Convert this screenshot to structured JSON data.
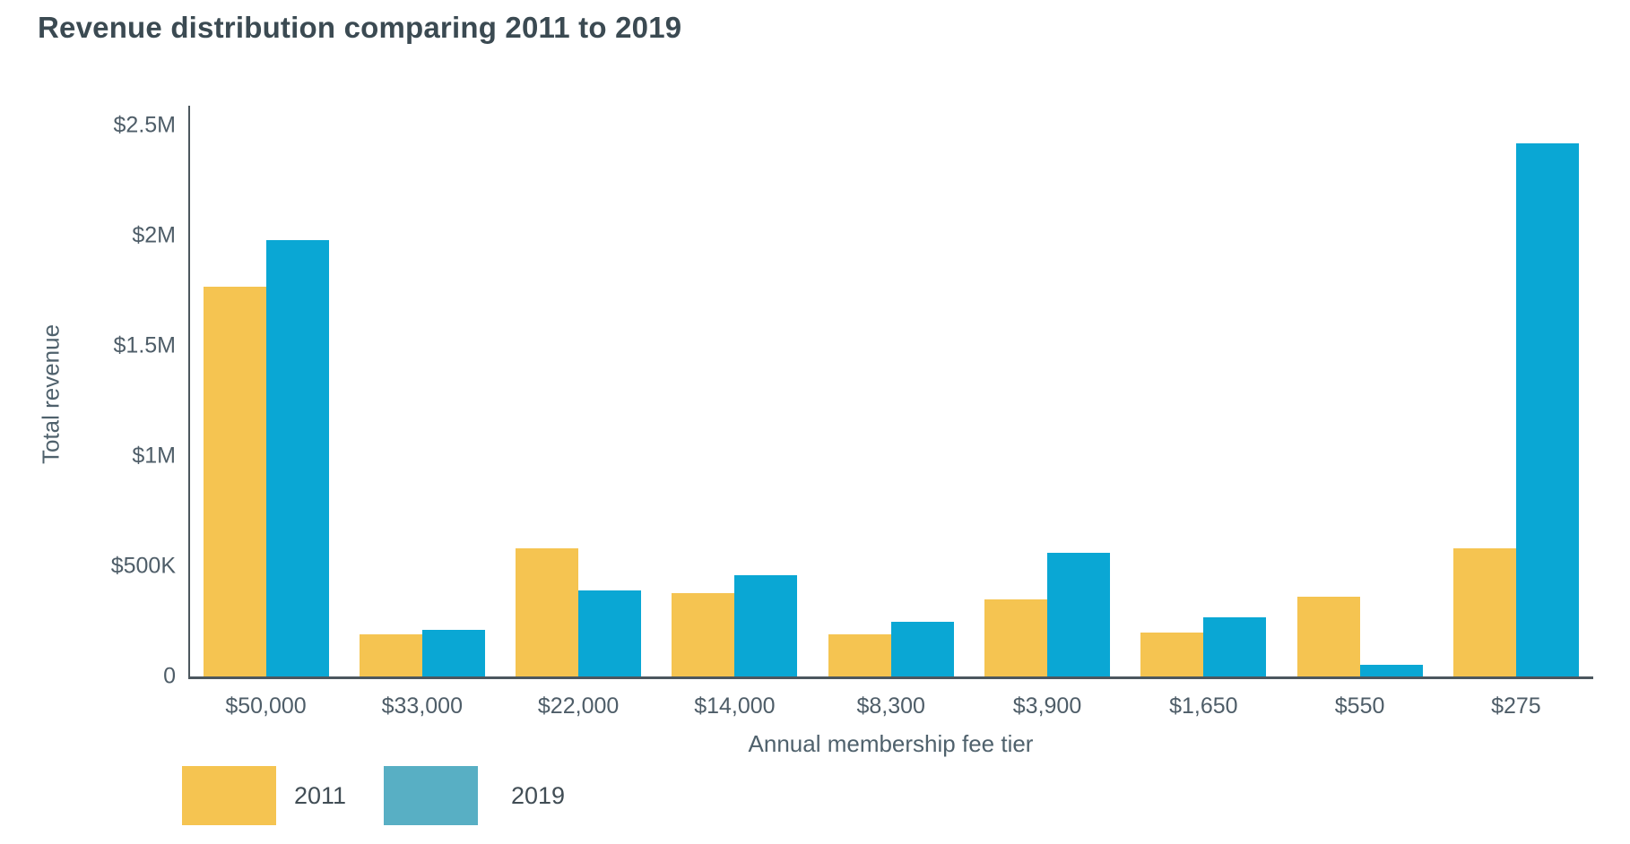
{
  "title": "Revenue distribution comparing 2011 to 2019",
  "chart_data": {
    "type": "bar",
    "title": "Revenue distribution comparing 2011 to 2019",
    "xlabel": "Annual membership fee tier",
    "ylabel": "Total revenue",
    "categories": [
      "$50,000",
      "$33,000",
      "$22,000",
      "$14,000",
      "$8,300",
      "$3,900",
      "$1,650",
      "$550",
      "$275"
    ],
    "series": [
      {
        "name": "2011",
        "color": "#f5c451",
        "legend_color": "#f5c451",
        "values": [
          1770000,
          190000,
          580000,
          380000,
          190000,
          350000,
          200000,
          360000,
          580000
        ]
      },
      {
        "name": "2019",
        "color": "#0aa7d4",
        "legend_color": "#58afc4",
        "values": [
          1980000,
          210000,
          390000,
          460000,
          250000,
          560000,
          270000,
          55000,
          2420000
        ]
      }
    ],
    "ylim": [
      0,
      2500000
    ],
    "yticks": [
      {
        "value": 0,
        "label": "0"
      },
      {
        "value": 500000,
        "label": "$500K"
      },
      {
        "value": 1000000,
        "label": "$1M"
      },
      {
        "value": 1500000,
        "label": "$1.5M"
      },
      {
        "value": 2000000,
        "label": "$2M"
      },
      {
        "value": 2500000,
        "label": "$2.5M"
      }
    ],
    "grid": false,
    "legend_position": "bottom-left"
  },
  "legend": {
    "items": [
      {
        "label": "2011",
        "color": "#f5c451"
      },
      {
        "label": "2019",
        "color": "#58afc4"
      }
    ]
  },
  "colors": {
    "title_text": "#3b4a52",
    "tick_text": "#4e5d68",
    "axis_title_text": "#4f616c",
    "axis_line": "#4c575e",
    "background": "#ffffff"
  }
}
